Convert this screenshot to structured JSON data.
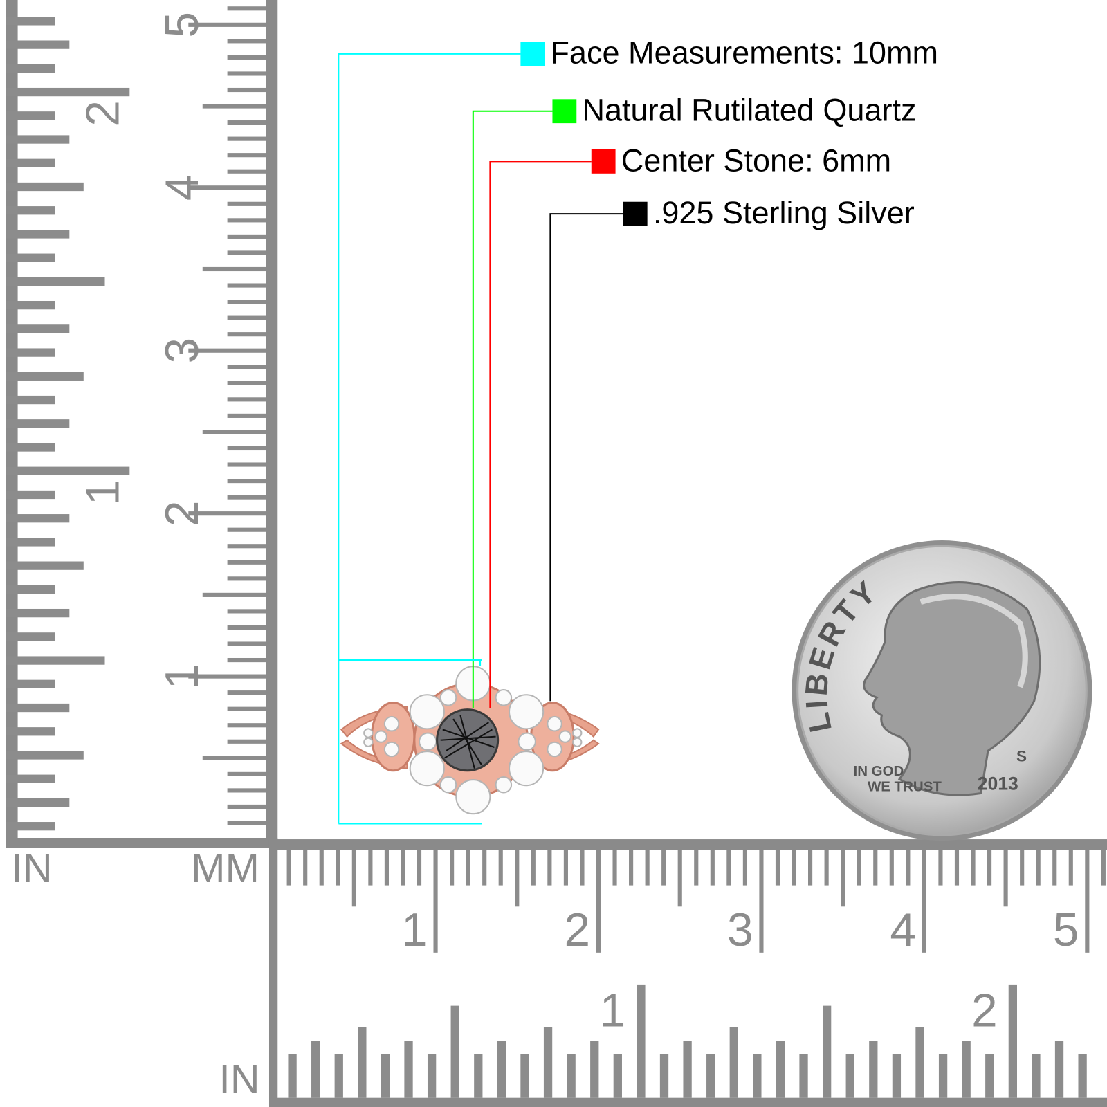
{
  "callouts": [
    {
      "label": "Face Measurements: 10mm",
      "color": "#00ffff"
    },
    {
      "label": "Natural Rutilated Quartz",
      "color": "#00ff00"
    },
    {
      "label": "Center Stone:  6mm",
      "color": "#ff0000"
    },
    {
      "label": ".925 Sterling Silver",
      "color": "#000000"
    }
  ],
  "rulers": {
    "vertical_in": {
      "unit": "IN",
      "labels": [
        "1",
        "2"
      ]
    },
    "vertical_mm": {
      "unit": "MM",
      "labels": [
        "1",
        "2",
        "3",
        "4",
        "5"
      ]
    },
    "horizontal_mm": {
      "labels": [
        "1",
        "2",
        "3",
        "4",
        "5"
      ]
    },
    "horizontal_in": {
      "unit": "IN",
      "labels": [
        "1",
        "2"
      ]
    }
  },
  "coin": {
    "legend": "LIBERTY",
    "motto": [
      "IN GOD",
      "WE TRUST"
    ],
    "mint_mark": "S",
    "year": "2013"
  }
}
